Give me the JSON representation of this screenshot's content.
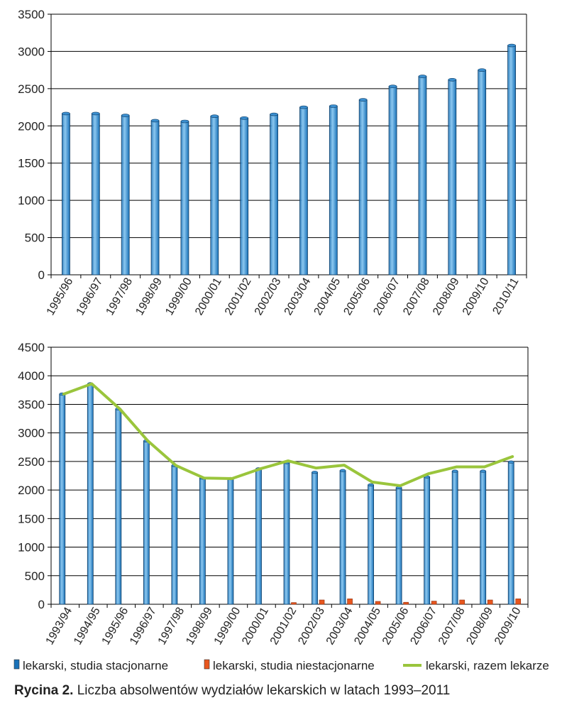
{
  "chart_data": [
    {
      "type": "bar",
      "categories": [
        "1995/96",
        "1996/97",
        "1997/98",
        "1998/99",
        "1999/00",
        "2000/01",
        "2001/02",
        "2002/03",
        "2003/04",
        "2004/05",
        "2005/06",
        "2006/07",
        "2007/08",
        "2008/09",
        "2009/10",
        "2010/11"
      ],
      "values": [
        2165,
        2165,
        2140,
        2070,
        2060,
        2130,
        2105,
        2155,
        2250,
        2265,
        2350,
        2530,
        2665,
        2620,
        2750,
        3080
      ],
      "ylim": [
        0,
        3500
      ],
      "yticks": [
        0,
        500,
        1000,
        1500,
        2000,
        2500,
        3000,
        3500
      ],
      "grid": true,
      "legend": "none",
      "colors": {
        "bar": "#1a72b8"
      }
    },
    {
      "type": "bar",
      "categories": [
        "1993/94",
        "1994/95",
        "1995/96",
        "1996/97",
        "1997/98",
        "1998/99",
        "1999/00",
        "2000/01",
        "2001/02",
        "2002/03",
        "2003/04",
        "2004/05",
        "2005/06",
        "2006/07",
        "2007/08",
        "2008/09",
        "2009/10"
      ],
      "series": [
        {
          "name": "lekarski, studia stacjonarne",
          "type": "bar",
          "color": "#1a72b8",
          "values": [
            3680,
            3860,
            3420,
            2860,
            2430,
            2210,
            2200,
            2370,
            2480,
            2310,
            2340,
            2090,
            2040,
            2230,
            2330,
            2330,
            2490
          ]
        },
        {
          "name": "lekarski, studia niestacjonarne",
          "type": "bar",
          "color": "#e8561e",
          "values": [
            0,
            0,
            0,
            0,
            0,
            0,
            0,
            0,
            30,
            75,
            95,
            50,
            35,
            55,
            75,
            75,
            95
          ]
        },
        {
          "name": "lekarski, razem lekarze",
          "type": "line",
          "color": "#9ac53c",
          "values": [
            3680,
            3860,
            3420,
            2860,
            2430,
            2210,
            2200,
            2370,
            2510,
            2385,
            2435,
            2140,
            2075,
            2285,
            2405,
            2405,
            2585
          ]
        }
      ],
      "ylim": [
        0,
        4500
      ],
      "yticks": [
        0,
        500,
        1000,
        1500,
        2000,
        2500,
        3000,
        3500,
        4000,
        4500
      ],
      "grid": true,
      "legend": "bottom"
    }
  ],
  "caption": {
    "label": "Rycina 2.",
    "text": " Liczba absolwentów wydziałów lekarskich w latach 1993–2011"
  }
}
